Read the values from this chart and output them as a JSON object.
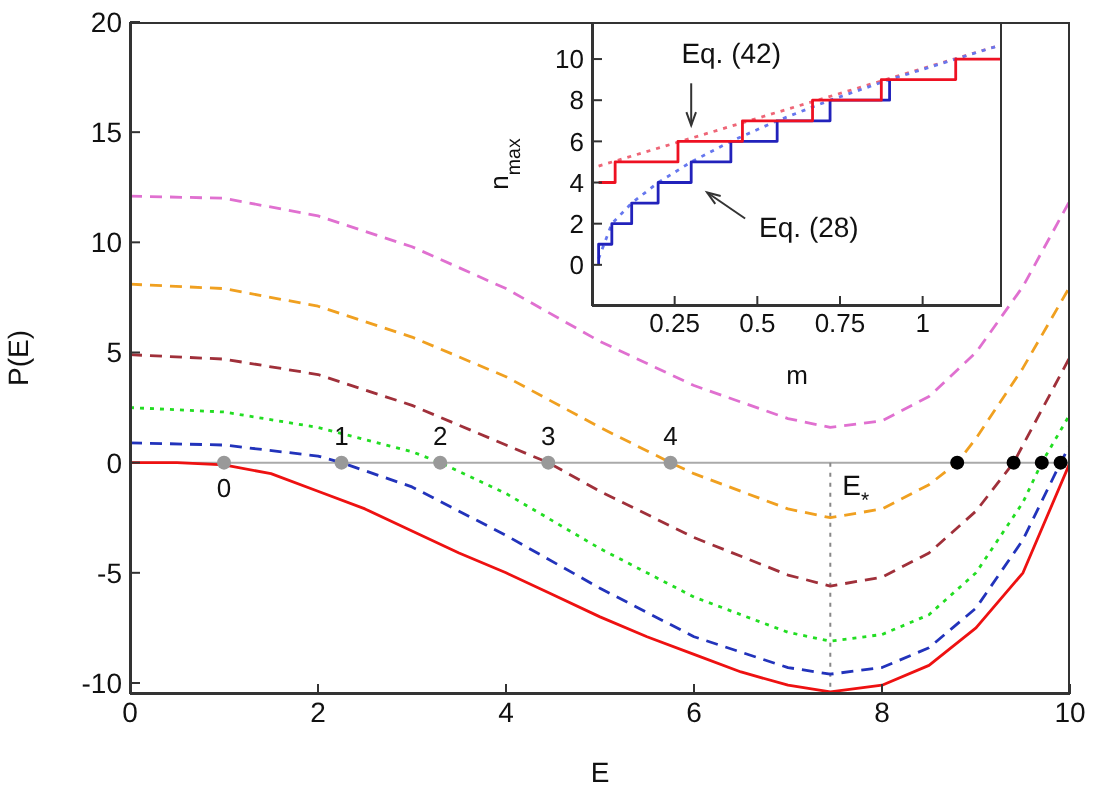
{
  "chart_data": [
    {
      "type": "line",
      "xlabel": "E",
      "ylabel": "P(E)",
      "xlim": [
        0,
        10
      ],
      "ylim": [
        -10.5,
        20
      ],
      "xticks": [
        0,
        2,
        4,
        6,
        8,
        10
      ],
      "yticks": [
        -10,
        -5,
        0,
        5,
        10,
        15,
        20
      ],
      "grid": false,
      "legend": false,
      "marker": "none",
      "series": [
        {
          "color": "#ee1111",
          "line_style": "solid",
          "x": [
            0,
            0.5,
            1,
            1.5,
            2,
            2.5,
            3,
            3.5,
            4,
            4.5,
            5,
            5.5,
            6,
            6.5,
            7,
            7.45,
            8,
            8.5,
            9,
            9.5,
            10
          ],
          "values": [
            0,
            0,
            -0.1,
            -0.5,
            -1.3,
            -2.1,
            -3.1,
            -4.1,
            -5.0,
            -6.0,
            -7.0,
            -7.9,
            -8.7,
            -9.5,
            -10.1,
            -10.4,
            -10.1,
            -9.2,
            -7.5,
            -5.0,
            0
          ]
        },
        {
          "color": "#2233bb",
          "line_style": "dashed",
          "x": [
            0,
            1,
            2,
            2.25,
            3,
            4,
            5,
            6,
            7,
            7.45,
            8,
            8.5,
            9,
            9.5,
            9.9,
            10
          ],
          "values": [
            0.9,
            0.8,
            0.3,
            0,
            -1.1,
            -3.3,
            -5.7,
            -7.9,
            -9.3,
            -9.6,
            -9.3,
            -8.4,
            -6.6,
            -3.5,
            0,
            0.8
          ]
        },
        {
          "color": "#22dd22",
          "line_style": "dotted",
          "x": [
            0,
            1,
            2,
            3,
            3.3,
            4,
            5,
            6,
            7,
            7.45,
            8,
            8.5,
            9,
            9.5,
            9.7,
            10
          ],
          "values": [
            2.5,
            2.3,
            1.6,
            0.5,
            0,
            -1.4,
            -3.9,
            -6.1,
            -7.7,
            -8.1,
            -7.8,
            -6.9,
            -5.0,
            -1.8,
            0,
            2.2
          ]
        },
        {
          "color": "#a0303a",
          "line_style": "dashed",
          "x": [
            0,
            1,
            2,
            3,
            4,
            4.45,
            5,
            6,
            7,
            7.45,
            8,
            8.5,
            9,
            9.4,
            10
          ],
          "values": [
            4.9,
            4.7,
            4.0,
            2.6,
            0.8,
            0,
            -1.3,
            -3.4,
            -5.1,
            -5.6,
            -5.2,
            -4.1,
            -2.2,
            0,
            4.8
          ]
        },
        {
          "color": "#f0a020",
          "line_style": "dashed",
          "x": [
            0,
            1,
            2,
            3,
            4,
            5,
            5.75,
            6,
            7,
            7.45,
            8,
            8.5,
            8.8,
            9,
            9.5,
            10
          ],
          "values": [
            8.1,
            7.9,
            7.1,
            5.7,
            3.9,
            1.6,
            0,
            -0.5,
            -2.1,
            -2.5,
            -2.1,
            -1.0,
            0,
            1.1,
            4.3,
            8.0
          ]
        },
        {
          "color": "#e070d0",
          "line_style": "dashed",
          "x": [
            0,
            1,
            2,
            3,
            4,
            5,
            6,
            7,
            7.45,
            8,
            8.5,
            9,
            9.5,
            10
          ],
          "values": [
            12.1,
            12.0,
            11.2,
            9.8,
            7.9,
            5.5,
            3.5,
            2.0,
            1.6,
            1.9,
            3.0,
            5.0,
            8.0,
            11.9
          ]
        },
        {
          "type": "scatter",
          "marker": "circle",
          "color": "#999999",
          "x": [
            1.0,
            2.25,
            3.3,
            4.45,
            5.75
          ],
          "values": [
            0,
            0,
            0,
            0,
            0
          ]
        },
        {
          "type": "scatter",
          "marker": "circle",
          "color": "#000000",
          "x": [
            8.8,
            9.4,
            9.7,
            9.9
          ],
          "values": [
            0,
            0,
            0,
            0
          ]
        }
      ],
      "ref_lines": [
        {
          "axis": "y",
          "value": 0,
          "color": "#aaaaaa",
          "line_style": "solid"
        },
        {
          "axis": "x",
          "value": 7.45,
          "label": "E$_{*}$",
          "color": "#888888",
          "line_style": "dotted"
        }
      ],
      "annotations": [
        {
          "text": "0",
          "x": 1.0,
          "y": 0
        },
        {
          "text": "1",
          "x": 2.25,
          "y": 0
        },
        {
          "text": "2",
          "x": 3.3,
          "y": 0
        },
        {
          "text": "3",
          "x": 4.45,
          "y": 0
        },
        {
          "text": "4",
          "x": 5.75,
          "y": 0
        }
      ]
    },
    {
      "type": "step",
      "xlabel": "m",
      "ylabel": "n$_{max}$",
      "xlim": [
        0,
        1.24
      ],
      "ylim": [
        -2,
        11.8
      ],
      "xticks": [
        0.25,
        0.5,
        0.75,
        1
      ],
      "yticks": [
        0,
        2,
        4,
        6,
        8,
        10
      ],
      "grid": false,
      "legend": false,
      "marker": "none",
      "series": [
        {
          "type": "line",
          "color": "#ee6677",
          "line_style": "dotted",
          "x": [
            0.02,
            1.24
          ],
          "values": [
            4.8,
            10.7
          ]
        },
        {
          "type": "line",
          "color": "#6677ee",
          "line_style": "dotted",
          "x": [
            0.02,
            0.06,
            0.12,
            0.2,
            0.3,
            0.42,
            0.56,
            0.72,
            0.9,
            1.1,
            1.24
          ],
          "values": [
            0.3,
            2.0,
            3.0,
            4.0,
            5.0,
            6.0,
            7.0,
            8.0,
            9.0,
            10.0,
            10.7
          ]
        },
        {
          "color": "#2222bb",
          "line_style": "solid",
          "x": [
            0.02,
            0.02,
            0.06,
            0.12,
            0.2,
            0.3,
            0.42,
            0.56,
            0.72,
            0.9
          ],
          "values": [
            0,
            1,
            2,
            3,
            4,
            5,
            6,
            7,
            8,
            9
          ]
        },
        {
          "color": "#ee1122",
          "line_style": "solid",
          "x": [
            0.02,
            0.07,
            0.26,
            0.455,
            0.667,
            0.875,
            1.1,
            1.24
          ],
          "values": [
            4,
            5,
            6,
            7,
            8,
            9,
            10,
            10
          ]
        }
      ],
      "annotations": [
        {
          "text": "Eq. (42)",
          "x": 0.3,
          "y": 6.1
        },
        {
          "text": "Eq. (28)",
          "x": 0.33,
          "y": 4
        }
      ]
    }
  ]
}
